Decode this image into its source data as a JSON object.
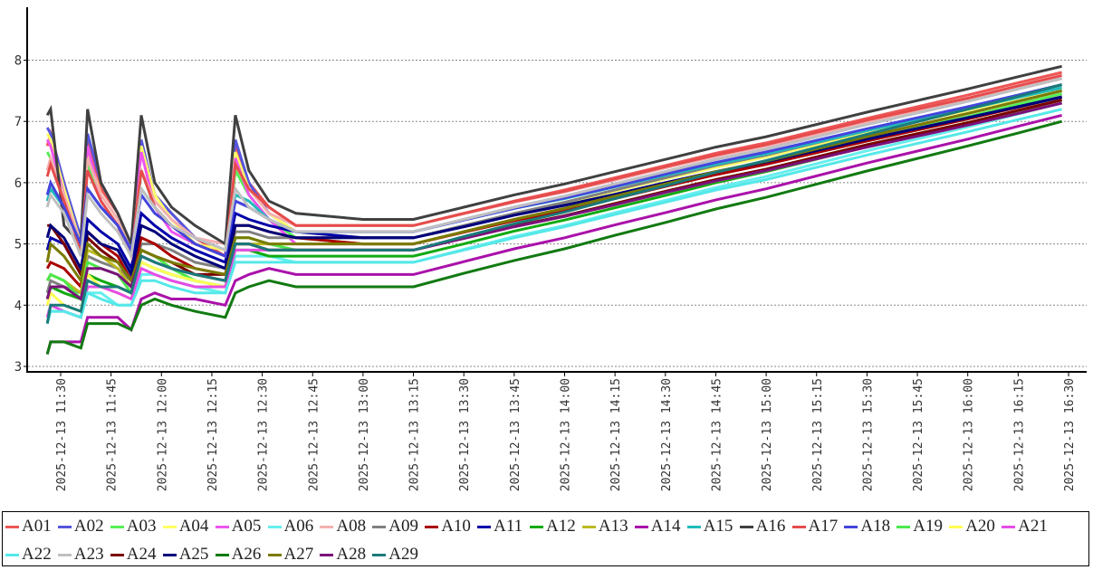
{
  "chart_data": {
    "type": "line",
    "title": "",
    "xlabel": "",
    "ylabel": "",
    "ylim": [
      2.93,
      8.87
    ],
    "grid": "horizontal dashed",
    "legend_position": "bottom",
    "yticks": [
      "3",
      "4",
      "5",
      "6",
      "7",
      "8"
    ],
    "xticks": [
      "2025-12-13  11:30",
      "2025-12-13  11:45",
      "2025-12-13  12:00",
      "2025-12-13  12:15",
      "2025-12-13  12:30",
      "2025-12-13  12:45",
      "2025-12-13  13:00",
      "2025-12-13  13:15",
      "2025-12-13  13:30",
      "2025-12-13  13:45",
      "2025-12-13  14:00",
      "2025-12-13  14:15",
      "2025-12-13  14:30",
      "2025-12-13  14:45",
      "2025-12-13  15:00",
      "2025-12-13  15:15",
      "2025-12-13  15:30",
      "2025-12-13  15:45",
      "2025-12-13  16:00",
      "2025-12-13  16:15",
      "2025-12-13  16:30"
    ],
    "x": [
      "11:26",
      "11:27",
      "11:31",
      "11:36",
      "11:38",
      "11:42",
      "11:47",
      "11:51",
      "11:54",
      "11:58",
      "12:03",
      "12:10",
      "12:19",
      "12:22",
      "12:26",
      "12:32",
      "12:40",
      "13:00",
      "13:15",
      "13:30",
      "13:45",
      "14:00",
      "14:15",
      "14:30",
      "14:45",
      "15:00",
      "15:30",
      "16:00",
      "16:15",
      "16:28"
    ],
    "series": [
      {
        "name": "A01",
        "color": "#ee5555",
        "values": [
          6.6,
          6.8,
          6.0,
          5.0,
          6.7,
          5.9,
          5.5,
          4.9,
          6.6,
          5.8,
          5.5,
          5.1,
          4.8,
          6.6,
          6.0,
          5.6,
          5.3,
          5.3,
          5.3,
          5.5,
          5.7,
          5.88,
          6.08,
          6.28,
          6.48,
          6.65,
          7.05,
          7.43,
          7.63,
          7.8
        ]
      },
      {
        "name": "A02",
        "color": "#5555dd",
        "values": [
          6.9,
          6.8,
          6.0,
          5.1,
          6.8,
          6.0,
          5.5,
          4.9,
          6.7,
          5.8,
          5.5,
          5.1,
          4.9,
          6.7,
          6.0,
          5.5,
          5.2,
          5.2,
          5.2,
          5.4,
          5.6,
          5.78,
          5.98,
          6.18,
          6.38,
          6.55,
          6.95,
          7.33,
          7.53,
          7.7
        ]
      },
      {
        "name": "A03",
        "color": "#55ee55",
        "values": [
          6.5,
          6.4,
          5.8,
          5.0,
          6.3,
          5.7,
          5.3,
          4.8,
          6.2,
          5.6,
          5.3,
          5.0,
          4.8,
          6.2,
          5.8,
          5.4,
          5.1,
          5.0,
          5.0,
          5.2,
          5.39,
          5.56,
          5.76,
          5.96,
          6.15,
          6.32,
          6.72,
          7.08,
          7.28,
          7.45
        ]
      },
      {
        "name": "A04",
        "color": "#ffff66",
        "values": [
          6.8,
          6.7,
          5.9,
          5.0,
          6.5,
          5.8,
          5.4,
          4.9,
          6.6,
          5.8,
          5.4,
          5.0,
          4.9,
          6.5,
          5.9,
          5.5,
          5.2,
          5.1,
          5.1,
          5.3,
          5.49,
          5.66,
          5.86,
          6.06,
          6.25,
          6.42,
          6.82,
          7.18,
          7.38,
          7.55
        ]
      },
      {
        "name": "A05",
        "color": "#ee55ee",
        "values": [
          6.7,
          6.6,
          5.8,
          4.9,
          6.6,
          5.7,
          5.3,
          4.8,
          6.5,
          5.6,
          5.2,
          5.0,
          4.8,
          6.4,
          5.8,
          5.4,
          5.0,
          5.0,
          5.0,
          5.2,
          5.4,
          5.58,
          5.78,
          5.98,
          6.18,
          6.35,
          6.75,
          7.13,
          7.33,
          7.5
        ]
      },
      {
        "name": "A06",
        "color": "#66eeee",
        "values": [
          3.9,
          3.9,
          3.9,
          3.8,
          4.2,
          4.2,
          4.0,
          4.0,
          4.5,
          4.5,
          4.4,
          4.3,
          4.2,
          4.8,
          4.8,
          4.8,
          4.7,
          4.7,
          4.7,
          4.91,
          5.12,
          5.3,
          5.51,
          5.71,
          5.92,
          6.1,
          6.52,
          6.91,
          7.12,
          7.3
        ]
      },
      {
        "name": "A08",
        "color": "#f4b0b0",
        "values": [
          6.2,
          6.4,
          5.8,
          5.0,
          6.4,
          5.8,
          5.4,
          4.9,
          6.2,
          5.7,
          5.4,
          5.1,
          5.0,
          6.3,
          5.9,
          5.5,
          5.3,
          5.3,
          5.3,
          5.49,
          5.68,
          5.85,
          6.04,
          6.24,
          6.43,
          6.6,
          6.98,
          7.34,
          7.53,
          7.7
        ]
      },
      {
        "name": "A09",
        "color": "#808080",
        "values": [
          4.2,
          4.4,
          4.3,
          4.2,
          4.8,
          4.7,
          4.6,
          4.4,
          5.0,
          5.0,
          4.9,
          4.7,
          4.6,
          5.2,
          5.2,
          5.1,
          5.1,
          5.1,
          5.1,
          5.3,
          5.5,
          5.68,
          5.88,
          6.08,
          6.28,
          6.45,
          6.85,
          7.23,
          7.43,
          7.6
        ]
      },
      {
        "name": "A10",
        "color": "#aa0000",
        "values": [
          4.6,
          4.7,
          4.6,
          4.3,
          5.2,
          5.0,
          4.8,
          4.4,
          5.1,
          5.0,
          4.8,
          4.6,
          4.5,
          5.3,
          5.3,
          5.2,
          5.1,
          5.0,
          5.0,
          5.19,
          5.38,
          5.55,
          5.74,
          5.94,
          6.13,
          6.3,
          6.68,
          7.04,
          7.23,
          7.4
        ]
      },
      {
        "name": "A11",
        "color": "#0000aa",
        "values": [
          4.9,
          5.1,
          5.0,
          4.5,
          5.4,
          5.2,
          5.0,
          4.6,
          5.5,
          5.3,
          5.1,
          4.9,
          4.7,
          5.5,
          5.4,
          5.3,
          5.2,
          5.1,
          5.1,
          5.28,
          5.47,
          5.63,
          5.81,
          6.0,
          6.18,
          6.34,
          6.71,
          7.06,
          7.24,
          7.4
        ]
      },
      {
        "name": "A12",
        "color": "#11aa11",
        "values": [
          4.1,
          4.3,
          4.2,
          4.1,
          4.5,
          4.4,
          4.3,
          4.2,
          4.7,
          4.6,
          4.5,
          4.4,
          4.3,
          4.9,
          4.9,
          4.8,
          4.8,
          4.8,
          4.8,
          5.0,
          5.21,
          5.39,
          5.59,
          5.79,
          6.0,
          6.18,
          6.59,
          6.97,
          7.17,
          7.35
        ]
      },
      {
        "name": "A13",
        "color": "#bbbb22",
        "values": [
          4.4,
          4.5,
          4.4,
          4.2,
          4.9,
          4.8,
          4.6,
          4.3,
          4.9,
          4.8,
          4.7,
          4.5,
          4.4,
          5.0,
          5.0,
          5.0,
          5.0,
          5.0,
          5.0,
          5.2,
          5.4,
          5.58,
          5.78,
          5.98,
          6.18,
          6.35,
          6.75,
          7.13,
          7.33,
          7.5
        ]
      },
      {
        "name": "A14",
        "color": "#aa11aa",
        "values": [
          3.2,
          3.4,
          3.4,
          3.4,
          3.8,
          3.8,
          3.8,
          3.6,
          4.1,
          4.2,
          4.1,
          4.1,
          4.0,
          4.4,
          4.5,
          4.6,
          4.5,
          4.5,
          4.5,
          4.71,
          4.92,
          5.1,
          5.31,
          5.51,
          5.72,
          5.9,
          6.32,
          6.71,
          6.92,
          7.1
        ]
      },
      {
        "name": "A15",
        "color": "#22bbbb",
        "values": [
          5.7,
          5.9,
          5.6,
          5.0,
          5.9,
          5.6,
          5.3,
          4.9,
          5.9,
          5.6,
          5.3,
          5.0,
          4.8,
          5.8,
          5.7,
          5.4,
          5.2,
          5.2,
          5.2,
          5.39,
          5.58,
          5.74,
          5.93,
          6.12,
          6.3,
          6.47,
          6.85,
          7.2,
          7.39,
          7.55
        ]
      },
      {
        "name": "A16",
        "color": "#404040",
        "values": [
          7.1,
          7.2,
          5.3,
          5.0,
          7.2,
          6.0,
          5.5,
          5.0,
          7.1,
          6.0,
          5.6,
          5.3,
          5.0,
          7.1,
          6.2,
          5.7,
          5.5,
          5.4,
          5.4,
          5.6,
          5.8,
          5.98,
          6.18,
          6.38,
          6.58,
          6.75,
          7.15,
          7.53,
          7.73,
          7.9
        ]
      },
      {
        "name": "A17",
        "color": "#e64c4c",
        "values": [
          6.1,
          6.3,
          5.7,
          4.9,
          6.2,
          5.7,
          5.3,
          4.8,
          6.2,
          5.6,
          5.3,
          5.0,
          4.8,
          6.3,
          5.9,
          5.6,
          5.3,
          5.3,
          5.3,
          5.5,
          5.69,
          5.86,
          6.06,
          6.26,
          6.45,
          6.62,
          7.02,
          7.38,
          7.58,
          7.75
        ]
      },
      {
        "name": "A18",
        "color": "#4444dd",
        "values": [
          5.8,
          6.0,
          5.6,
          5.0,
          5.9,
          5.6,
          5.3,
          4.9,
          5.8,
          5.5,
          5.3,
          5.0,
          4.8,
          5.7,
          5.6,
          5.4,
          5.2,
          5.2,
          5.2,
          5.39,
          5.58,
          5.75,
          5.94,
          6.14,
          6.33,
          6.5,
          6.88,
          7.24,
          7.43,
          7.6
        ]
      },
      {
        "name": "A19",
        "color": "#4ae84a",
        "values": [
          4.4,
          4.5,
          4.4,
          4.1,
          4.7,
          4.6,
          4.5,
          4.2,
          4.9,
          4.8,
          4.6,
          4.4,
          4.3,
          5.1,
          5.1,
          5.0,
          4.9,
          4.9,
          4.9,
          5.1,
          5.29,
          5.46,
          5.66,
          5.86,
          6.05,
          6.22,
          6.62,
          6.98,
          7.18,
          7.35
        ]
      },
      {
        "name": "A20",
        "color": "#ffff55",
        "values": [
          4.0,
          4.2,
          4.0,
          3.9,
          4.5,
          4.3,
          4.2,
          4.1,
          4.7,
          4.6,
          4.5,
          4.4,
          4.3,
          5.0,
          5.0,
          4.9,
          4.9,
          4.9,
          4.9,
          5.09,
          5.28,
          5.45,
          5.64,
          5.84,
          6.03,
          6.2,
          6.58,
          6.94,
          7.13,
          7.3
        ]
      },
      {
        "name": "A21",
        "color": "#e64ce6",
        "values": [
          3.8,
          4.0,
          3.9,
          3.8,
          4.3,
          4.3,
          4.2,
          4.1,
          4.6,
          4.5,
          4.4,
          4.3,
          4.3,
          4.9,
          4.9,
          4.9,
          4.9,
          4.9,
          4.9,
          5.09,
          5.28,
          5.45,
          5.64,
          5.84,
          6.03,
          6.2,
          6.58,
          6.94,
          7.13,
          7.3
        ]
      },
      {
        "name": "A22",
        "color": "#55e8e8",
        "values": [
          3.7,
          3.9,
          3.9,
          3.8,
          4.2,
          4.1,
          4.0,
          4.0,
          4.4,
          4.4,
          4.3,
          4.2,
          4.2,
          4.7,
          4.7,
          4.7,
          4.7,
          4.7,
          4.7,
          4.9,
          5.1,
          5.28,
          5.48,
          5.68,
          5.88,
          6.05,
          6.45,
          6.83,
          7.03,
          7.2
        ]
      },
      {
        "name": "A23",
        "color": "#c0c0c0",
        "values": [
          5.6,
          5.8,
          5.5,
          4.8,
          5.8,
          5.5,
          5.2,
          4.8,
          5.9,
          5.6,
          5.3,
          5.1,
          4.9,
          5.9,
          5.6,
          5.4,
          5.2,
          5.2,
          5.2,
          5.4,
          5.6,
          5.78,
          5.98,
          6.18,
          6.38,
          6.55,
          6.95,
          7.33,
          7.53,
          7.7
        ]
      },
      {
        "name": "A24",
        "color": "#7a0000",
        "values": [
          5.3,
          5.3,
          5.0,
          4.5,
          5.1,
          4.9,
          4.7,
          4.4,
          4.9,
          4.8,
          4.7,
          4.5,
          4.5,
          5.0,
          5.0,
          4.9,
          4.9,
          4.9,
          4.9,
          5.1,
          5.29,
          5.46,
          5.66,
          5.86,
          6.05,
          6.22,
          6.62,
          6.98,
          7.18,
          7.35
        ]
      },
      {
        "name": "A25",
        "color": "#00007a",
        "values": [
          5.1,
          5.3,
          5.1,
          4.6,
          5.2,
          5.0,
          4.9,
          4.5,
          5.3,
          5.2,
          5.0,
          4.8,
          4.6,
          5.3,
          5.3,
          5.2,
          5.1,
          5.1,
          5.1,
          5.28,
          5.47,
          5.63,
          5.81,
          6.0,
          6.18,
          6.34,
          6.71,
          7.06,
          7.24,
          7.4
        ]
      },
      {
        "name": "A26",
        "color": "#117a11",
        "values": [
          3.2,
          3.4,
          3.4,
          3.3,
          3.7,
          3.7,
          3.7,
          3.6,
          4.0,
          4.1,
          4.0,
          3.9,
          3.8,
          4.2,
          4.3,
          4.4,
          4.3,
          4.3,
          4.3,
          4.52,
          4.73,
          4.92,
          5.14,
          5.35,
          5.57,
          5.76,
          6.19,
          6.6,
          6.81,
          7.0
        ]
      },
      {
        "name": "A27",
        "color": "#7a7a00",
        "values": [
          4.7,
          5.0,
          4.8,
          4.4,
          5.0,
          4.8,
          4.7,
          4.4,
          4.9,
          4.8,
          4.7,
          4.6,
          4.5,
          5.1,
          5.1,
          5.0,
          5.0,
          5.0,
          5.0,
          5.2,
          5.4,
          5.58,
          5.78,
          5.98,
          6.18,
          6.35,
          6.75,
          7.13,
          7.33,
          7.5
        ]
      },
      {
        "name": "A28",
        "color": "#7a117a",
        "values": [
          4.1,
          4.3,
          4.3,
          4.1,
          4.6,
          4.6,
          4.5,
          4.3,
          4.8,
          4.7,
          4.6,
          4.5,
          4.4,
          5.0,
          5.0,
          4.9,
          4.9,
          4.9,
          4.9,
          5.09,
          5.28,
          5.45,
          5.64,
          5.84,
          6.03,
          6.2,
          6.58,
          6.94,
          7.13,
          7.3
        ]
      },
      {
        "name": "A29",
        "color": "#1a7a7a",
        "values": [
          3.7,
          4.0,
          4.0,
          3.9,
          4.4,
          4.3,
          4.3,
          4.2,
          4.8,
          4.7,
          4.6,
          4.5,
          4.4,
          5.0,
          5.0,
          4.9,
          4.9,
          4.9,
          4.9,
          5.12,
          5.33,
          5.52,
          5.74,
          5.95,
          6.17,
          6.36,
          6.79,
          7.2,
          7.41,
          7.6
        ]
      }
    ]
  }
}
